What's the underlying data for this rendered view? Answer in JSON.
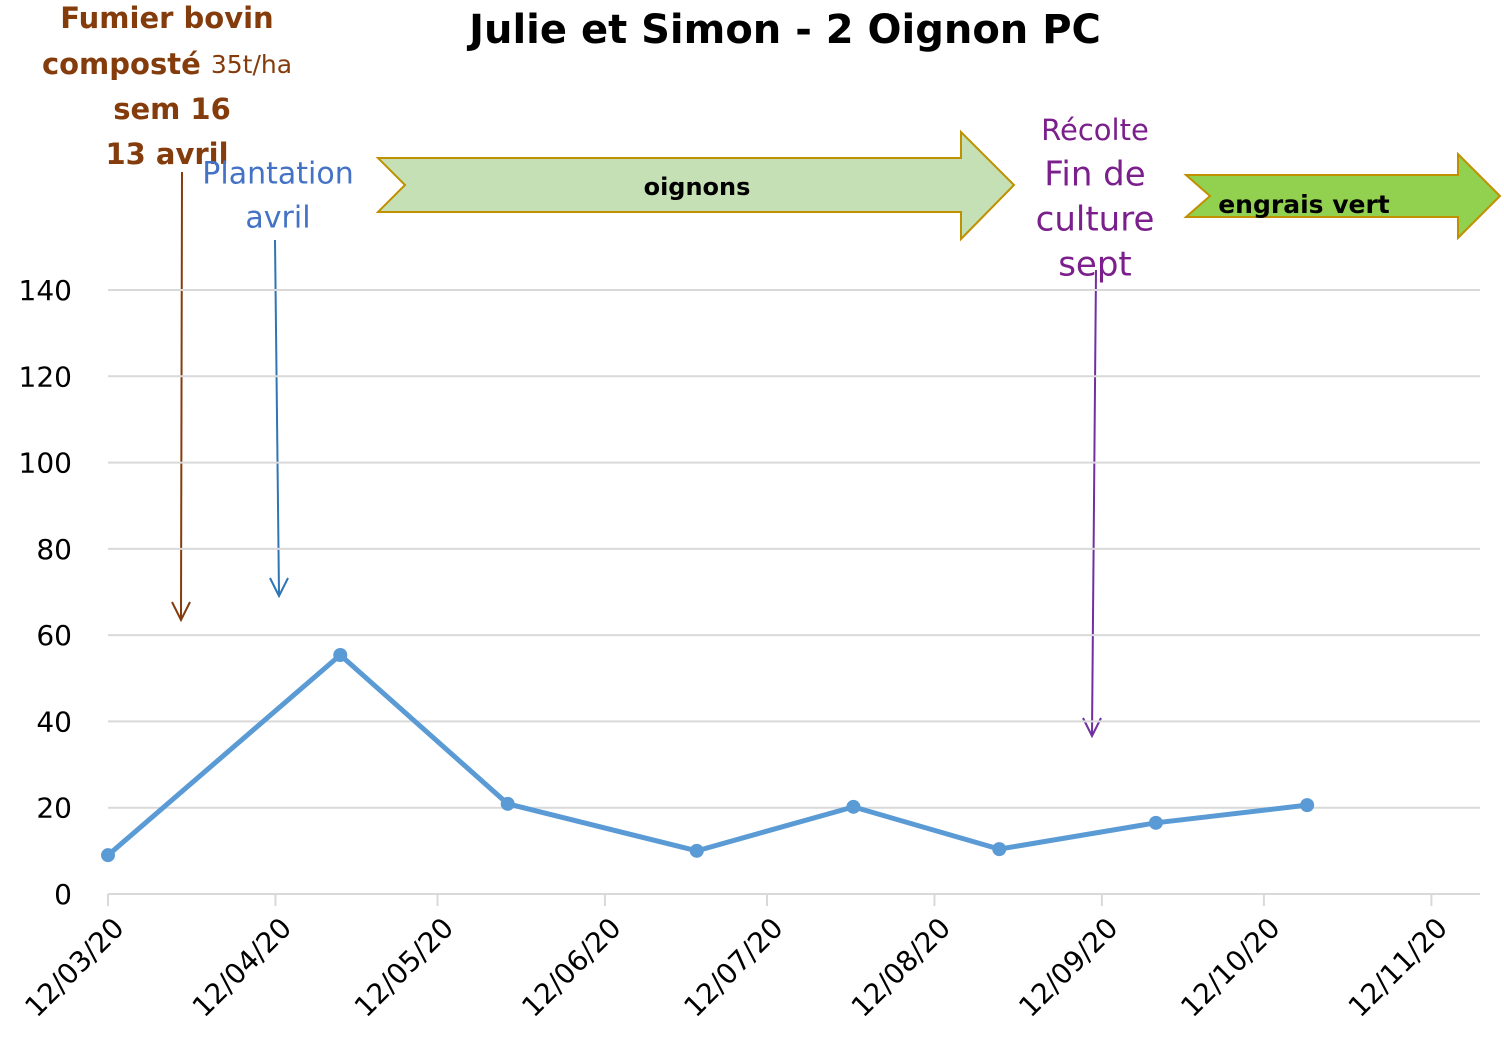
{
  "chart_data": {
    "type": "line",
    "title": "Julie et Simon - 2 Oignon PC",
    "x": [
      "2020-03-12",
      "2020-04-24",
      "2020-05-25",
      "2020-06-29",
      "2020-07-28",
      "2020-08-24",
      "2020-09-22",
      "2020-10-20"
    ],
    "series": [
      {
        "name": "Oignon PC",
        "color": "#5b9bd5",
        "values": [
          9,
          55.4,
          20.9,
          10,
          20.2,
          10.4,
          16.5,
          20.6
        ]
      }
    ],
    "xlim": [
      "2020-03-12",
      "2020-11-21"
    ],
    "xticks": [
      {
        "value": "2020-03-12",
        "label": "12/03/20"
      },
      {
        "value": "2020-04-12",
        "label": "12/04/20"
      },
      {
        "value": "2020-05-12",
        "label": "12/05/20"
      },
      {
        "value": "2020-06-12",
        "label": "12/06/20"
      },
      {
        "value": "2020-07-12",
        "label": "12/07/20"
      },
      {
        "value": "2020-08-12",
        "label": "12/08/20"
      },
      {
        "value": "2020-09-12",
        "label": "12/09/20"
      },
      {
        "value": "2020-10-12",
        "label": "12/10/20"
      },
      {
        "value": "2020-11-12",
        "label": "12/11/20"
      }
    ],
    "ylim": [
      0,
      140
    ],
    "yticks": [
      0,
      20,
      40,
      60,
      80,
      100,
      120,
      140
    ],
    "grid": true,
    "annotations": {
      "fumier": [
        "Fumier bovin",
        "composté",
        "35t/ha",
        "sem 16",
        "13 avril"
      ],
      "plantation": [
        "Plantation",
        "avril"
      ],
      "recolte": [
        "Récolte",
        "Fin de",
        "culture",
        "sept"
      ],
      "oignons": "oignons",
      "engrais": "engrais vert"
    }
  }
}
